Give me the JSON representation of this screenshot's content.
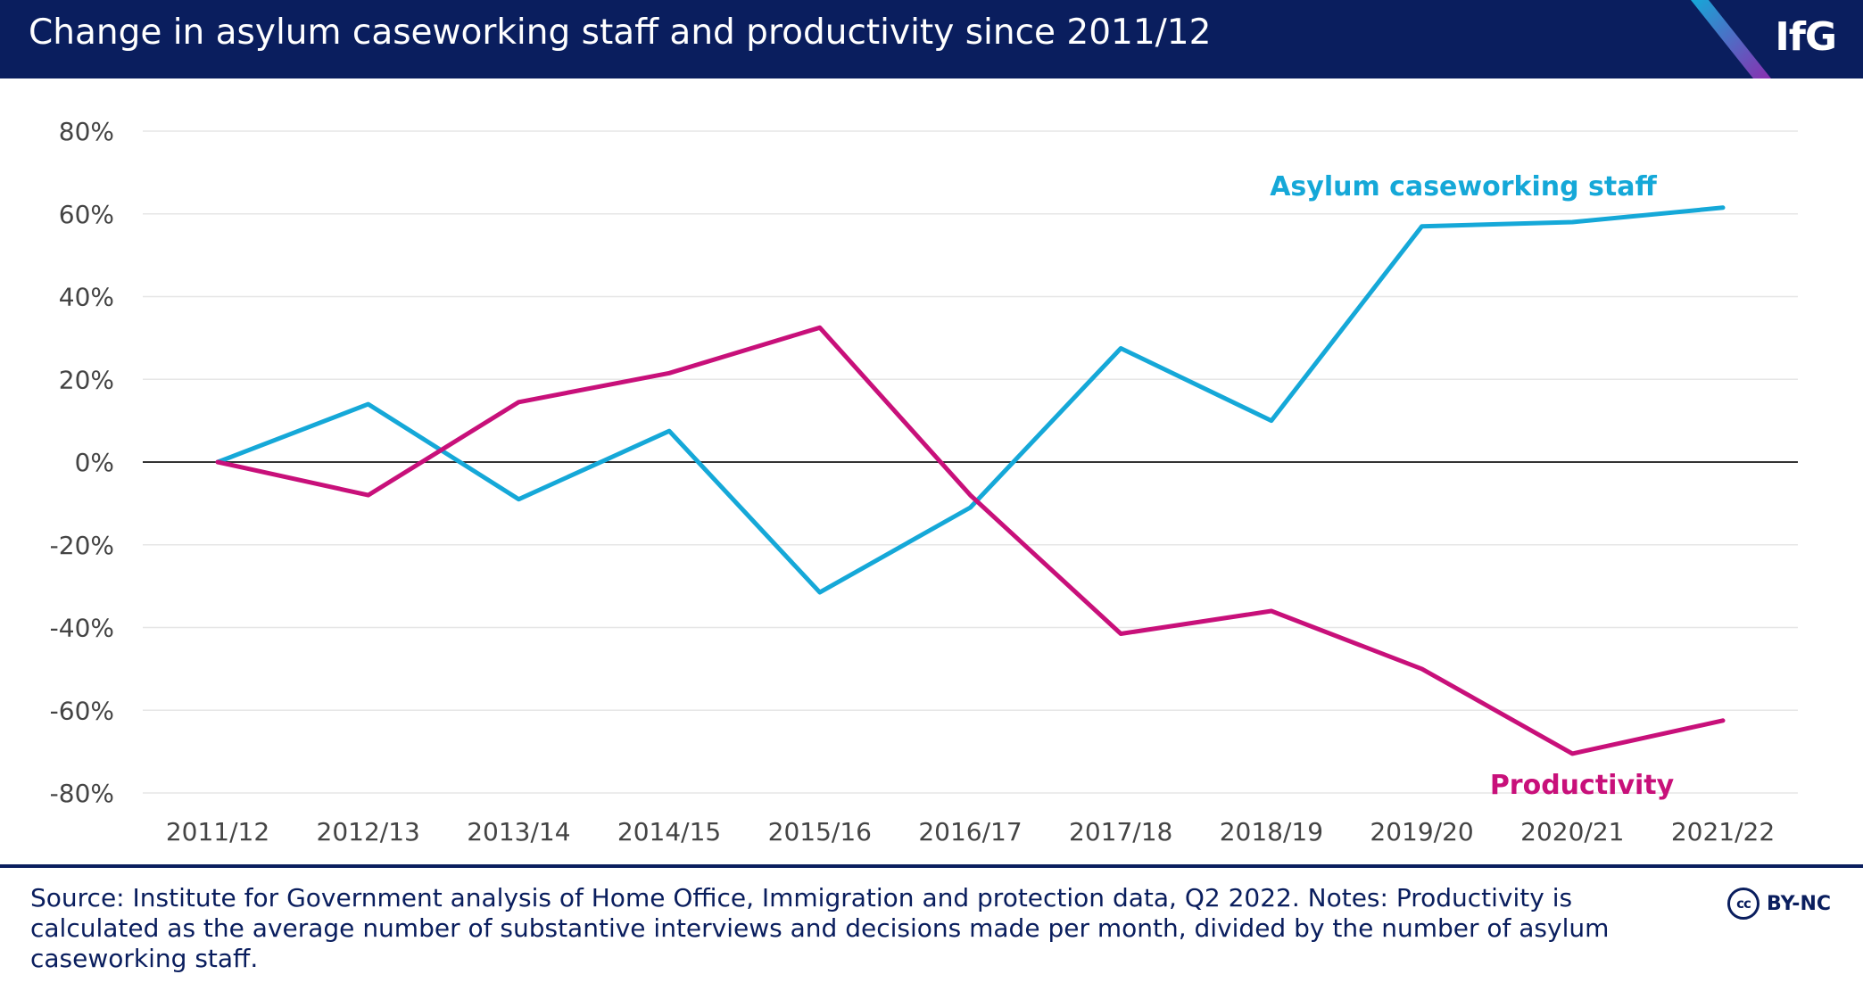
{
  "header": {
    "title": "Change in asylum caseworking staff and productivity since 2011/12",
    "logo": "IfG"
  },
  "colors": {
    "header_bg": "#0a1e5e",
    "staff": "#15a8d8",
    "productivity": "#c8107a",
    "zero_line": "#333333",
    "grid": "#e6e6e6",
    "text": "#444444"
  },
  "chart_data": {
    "type": "line",
    "title": "Change in asylum caseworking staff and productivity since 2011/12",
    "xlabel": "",
    "ylabel": "",
    "categories": [
      "2011/12",
      "2012/13",
      "2013/14",
      "2014/15",
      "2015/16",
      "2016/17",
      "2017/18",
      "2018/19",
      "2019/20",
      "2020/21",
      "2021/22"
    ],
    "ylim": [
      -80,
      80
    ],
    "yticks": [
      80,
      60,
      40,
      20,
      0,
      -20,
      -40,
      -60,
      -80
    ],
    "ytick_labels": [
      "80%",
      "60%",
      "40%",
      "20%",
      "0%",
      "-20%",
      "-40%",
      "-60%",
      "-80%"
    ],
    "grid": true,
    "legend": "direct labels at line ends",
    "series": [
      {
        "name": "Asylum caseworking staff",
        "color": "#15a8d8",
        "values": [
          0,
          14,
          -9,
          7.5,
          -31.5,
          -11,
          27.5,
          10,
          57,
          58,
          61.5
        ]
      },
      {
        "name": "Productivity",
        "color": "#c8107a",
        "values": [
          0,
          -8,
          14.5,
          21.5,
          32.5,
          -8,
          -41.5,
          -36,
          -50,
          -70.5,
          -62.5
        ]
      }
    ]
  },
  "footer": {
    "source": "Source: Institute for Government analysis of Home Office, Immigration and protection data, Q2 2022. Notes: Productivity is calculated as the average number of substantive interviews and decisions made per month, divided by the number of asylum caseworking staff.",
    "cc_icon": "cc",
    "license": "BY-NC"
  }
}
